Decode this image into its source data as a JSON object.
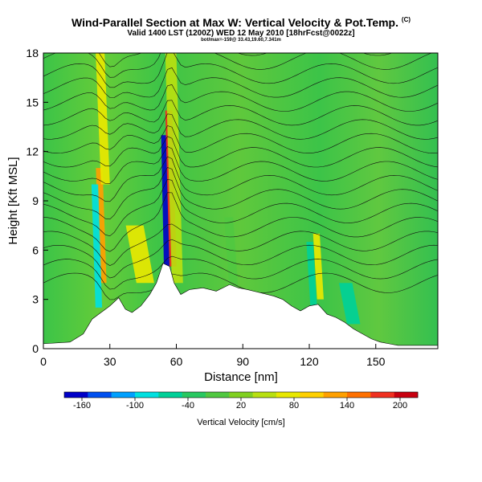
{
  "title": "Wind-Parallel Section at Max W: Vertical Velocity & Pot.Temp.",
  "title_mark": "(C)",
  "subtitle": "Valid 1400 LST (1200Z) WED 12 May 2010 [18hrFcst@0022z]",
  "subtitle2": "bot/max=-159@ 33.43,19.60,7.341m",
  "chart_data": {
    "type": "heatmap",
    "xlabel": "Distance [nm]",
    "ylabel": "Height [Kft MSL]",
    "xlim": [
      0,
      178
    ],
    "ylim": [
      0,
      18
    ],
    "x_ticks": [
      0,
      30,
      60,
      90,
      120,
      150
    ],
    "y_ticks": [
      0,
      3,
      6,
      9,
      12,
      15,
      18
    ],
    "colorbar": {
      "label": "Vertical Velocity [cm/s]",
      "range": [
        -180,
        220
      ],
      "tick_values": [
        -160,
        -100,
        -40,
        20,
        80,
        140,
        200
      ],
      "colors": [
        "#0000c8",
        "#0050f0",
        "#00a0ff",
        "#00e0e0",
        "#00d098",
        "#28c860",
        "#50c840",
        "#80d020",
        "#b8e010",
        "#e8e800",
        "#ffd000",
        "#ffa000",
        "#ff7000",
        "#f03020",
        "#c80010"
      ]
    },
    "terrain_profile": {
      "distance_nm": [
        0,
        12,
        18,
        22,
        26,
        30,
        34,
        37,
        40,
        44,
        48,
        51,
        54,
        57,
        59,
        62,
        66,
        72,
        78,
        84,
        88,
        92,
        98,
        104,
        108,
        112,
        116,
        120,
        124,
        128,
        132,
        136,
        140,
        144,
        148,
        152,
        156,
        160,
        170,
        178
      ],
      "height_kft": [
        0.3,
        0.4,
        0.9,
        1.8,
        2.2,
        2.6,
        3.1,
        2.4,
        2.2,
        2.6,
        3.3,
        4.0,
        5.2,
        5.0,
        4.0,
        3.3,
        3.6,
        3.7,
        3.5,
        3.9,
        3.7,
        3.6,
        3.4,
        3.2,
        3.0,
        2.6,
        2.3,
        2.6,
        2.7,
        2.1,
        1.9,
        1.6,
        1.2,
        0.9,
        0.6,
        0.4,
        0.3,
        0.2,
        0.2,
        0.2
      ]
    },
    "vertical_velocity_features": [
      {
        "center_nm": 56,
        "half_width_nm": 1.3,
        "min_kft": 3,
        "max_kft": 13,
        "value_cm_s": -159
      },
      {
        "center_nm": 58.5,
        "half_width_nm": 1.6,
        "min_kft": 5,
        "max_kft": 14.5,
        "value_cm_s": 170
      },
      {
        "center_nm": 60.5,
        "half_width_nm": 2.5,
        "min_kft": 4,
        "max_kft": 18,
        "value_cm_s": 45
      },
      {
        "center_nm": 27,
        "half_width_nm": 1.5,
        "min_kft": 4,
        "max_kft": 11,
        "value_cm_s": 130
      },
      {
        "center_nm": 25,
        "half_width_nm": 1.5,
        "min_kft": 2.5,
        "max_kft": 10,
        "value_cm_s": -90
      },
      {
        "center_nm": 28,
        "half_width_nm": 2,
        "min_kft": 10,
        "max_kft": 18,
        "value_cm_s": 60
      },
      {
        "center_nm": 46,
        "half_width_nm": 4,
        "min_kft": 4,
        "max_kft": 7.5,
        "value_cm_s": 80
      },
      {
        "center_nm": 122,
        "half_width_nm": 1.5,
        "min_kft": 2.5,
        "max_kft": 6.5,
        "value_cm_s": -70
      },
      {
        "center_nm": 125,
        "half_width_nm": 1.5,
        "min_kft": 3,
        "max_kft": 7,
        "value_cm_s": 60
      },
      {
        "center_nm": 140,
        "half_width_nm": 3,
        "min_kft": 1.5,
        "max_kft": 4,
        "value_cm_s": -60
      },
      {
        "center_nm": 86,
        "half_width_nm": 2,
        "min_kft": 3.5,
        "max_kft": 8,
        "value_cm_s": -20
      }
    ],
    "background_value_cm_s": 10,
    "contours": "potential temperature isentropes (black lines) labeled in plot"
  }
}
